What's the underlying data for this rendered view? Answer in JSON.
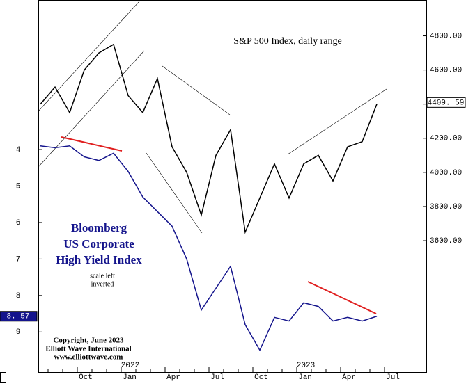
{
  "chart_data": {
    "type": "line",
    "title": "S&P 500 Index, daily range",
    "annotations": [
      "Bloomberg",
      "US Corporate",
      "High Yield Index",
      "scale left",
      "inverted",
      "Copyright, June 2023",
      "Elliott Wave International",
      "www.elliottwave.com"
    ],
    "categories": [
      null,
      null,
      null,
      "Oct",
      null,
      null,
      "Jan",
      null,
      null,
      "Apr",
      null,
      null,
      "Jul",
      null,
      null,
      "Oct",
      null,
      null,
      "Jan",
      null,
      null,
      "Apr",
      null,
      null,
      "Jul"
    ],
    "years": [
      null,
      null,
      null,
      null,
      null,
      null,
      "2022",
      null,
      null,
      null,
      null,
      null,
      null,
      null,
      null,
      null,
      null,
      null,
      "2023",
      null,
      null,
      null,
      null,
      null,
      null
    ],
    "series": [
      {
        "color": "#000000",
        "axis": "y2",
        "values": [
          4400,
          4500,
          4350,
          4600,
          4700,
          4750,
          4450,
          4350,
          4550,
          4150,
          4000,
          3750,
          4100,
          4250,
          3650,
          3850,
          4050,
          3850,
          4050,
          4100,
          3950,
          4150,
          4180,
          4400,
          null
        ],
        "last_value": 4409.59,
        "last_label": "4409. 59"
      },
      {
        "color": "#14148c",
        "axis": "y",
        "values": [
          3.9,
          3.95,
          3.9,
          4.2,
          4.3,
          4.1,
          4.6,
          5.3,
          5.7,
          6.1,
          7.0,
          8.4,
          7.8,
          7.2,
          8.8,
          9.5,
          8.6,
          8.7,
          8.2,
          8.3,
          8.7,
          8.6,
          8.7,
          8.57,
          null
        ],
        "last_value": 8.57,
        "last_label": "8. 57"
      }
    ],
    "ylim": [
      10.1,
      -0.1
    ],
    "yticks": [
      4,
      5,
      6,
      7,
      8,
      9
    ],
    "y2lim": [
      2830,
      5010
    ],
    "y2ticks": [
      {
        "value": 3600,
        "label": "3600.00"
      },
      {
        "value": 3800,
        "label": "3800.00"
      },
      {
        "value": 4000,
        "label": "4000.00"
      },
      {
        "value": 4200,
        "label": "4200.00"
      },
      {
        "value": 4400,
        "label": "4400.00"
      },
      {
        "value": 4600,
        "label": "4600.00"
      },
      {
        "value": 4800,
        "label": "4800.00"
      }
    ]
  }
}
